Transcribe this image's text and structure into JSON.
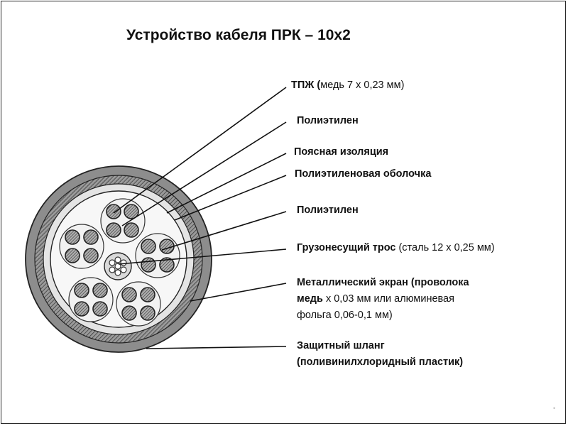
{
  "title": "Устройство кабеля ПРК – 10х2",
  "labels": [
    {
      "bold": "ТПЖ (",
      "normal": "медь 7 х 0,23 мм)"
    },
    {
      "bold": "Полиэтилен",
      "normal": ""
    },
    {
      "bold": "Поясная изоляция",
      "normal": ""
    },
    {
      "bold": "Полиэтиленовая оболочка",
      "normal": ""
    },
    {
      "bold": "Полиэтилен",
      "normal": ""
    },
    {
      "bold": "Грузонесущий трос",
      "normal": " (сталь 12 х 0,25 мм)"
    },
    {
      "bold": "Металлический экран   (проволока",
      "normal": ""
    },
    {
      "bold": "медь",
      "normal": " х 0,03 мм или алюминевая"
    },
    {
      "bold": "",
      "normal": "фольга  0,06-0,1 мм)"
    },
    {
      "bold": "Защитный шланг",
      "normal": ""
    },
    {
      "bold": "(поливинилхлоридный пластик)",
      "normal": ""
    }
  ],
  "page_mark": "•"
}
